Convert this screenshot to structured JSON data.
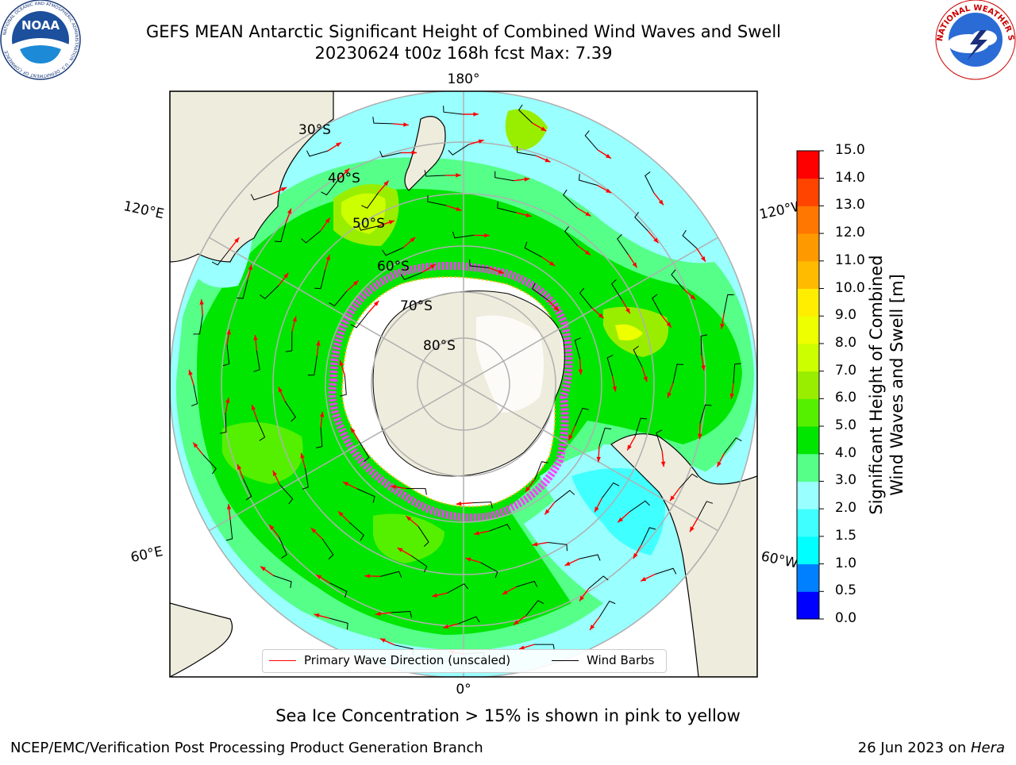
{
  "header": {
    "title_line1": "GEFS MEAN Antarctic Significant Height of Combined Wind Waves and Swell",
    "title_line2": "20230624 t00z 168h fcst   Max: 7.39"
  },
  "logos": {
    "noaa_text": "NOAA",
    "noaa_ring_text": "NATIONAL OCEANIC AND ATMOSPHERIC ADMINISTRATION · U.S. DEPARTMENT OF COMMERCE",
    "nws_ring_text": "NATIONAL WEATHER SERVICE"
  },
  "map": {
    "lon_labels": {
      "top": "180°",
      "bottom": "0°",
      "left_upper": "120°E",
      "left_lower": "60°E",
      "right_upper": "120°W",
      "right_lower": "60°W"
    },
    "lat_labels": [
      "30°S",
      "40°S",
      "50°S",
      "60°S",
      "70°S",
      "80°S"
    ],
    "colors": {
      "ocean_low": "#99ffff",
      "ocean_mid": "#00e600",
      "land": "#eeecdc",
      "ice_edge": "#ff33ff"
    }
  },
  "legend": {
    "wave_label": "Primary Wave Direction (unscaled)",
    "wave_color": "#ff0000",
    "barb_label": "Wind Barbs",
    "barb_color": "#000000"
  },
  "colorbar": {
    "label_line1": "Significant Height of Combined",
    "label_line2": "Wind Waves and Swell [m]",
    "ticks": [
      "0.0",
      "0.5",
      "1.0",
      "1.5",
      "2.0",
      "3.0",
      "4.0",
      "5.0",
      "6.0",
      "7.0",
      "8.0",
      "9.0",
      "10.0",
      "11.0",
      "12.0",
      "13.0",
      "14.0",
      "15.0"
    ],
    "colors": [
      "#0000ff",
      "#0080ff",
      "#00ffff",
      "#40ffff",
      "#99ffff",
      "#55ff88",
      "#00e600",
      "#55f000",
      "#99ee00",
      "#ccff00",
      "#eeff00",
      "#ffee00",
      "#ffbb00",
      "#ff9900",
      "#ff7700",
      "#ff4400",
      "#ff0000"
    ]
  },
  "footer": {
    "ice_note": "Sea Ice Concentration > 15% is shown in pink to yellow",
    "branch": "NCEP/EMC/Verification Post Processing Product Generation Branch",
    "date": "26 Jun 2023 on ",
    "machine": "Hera"
  }
}
